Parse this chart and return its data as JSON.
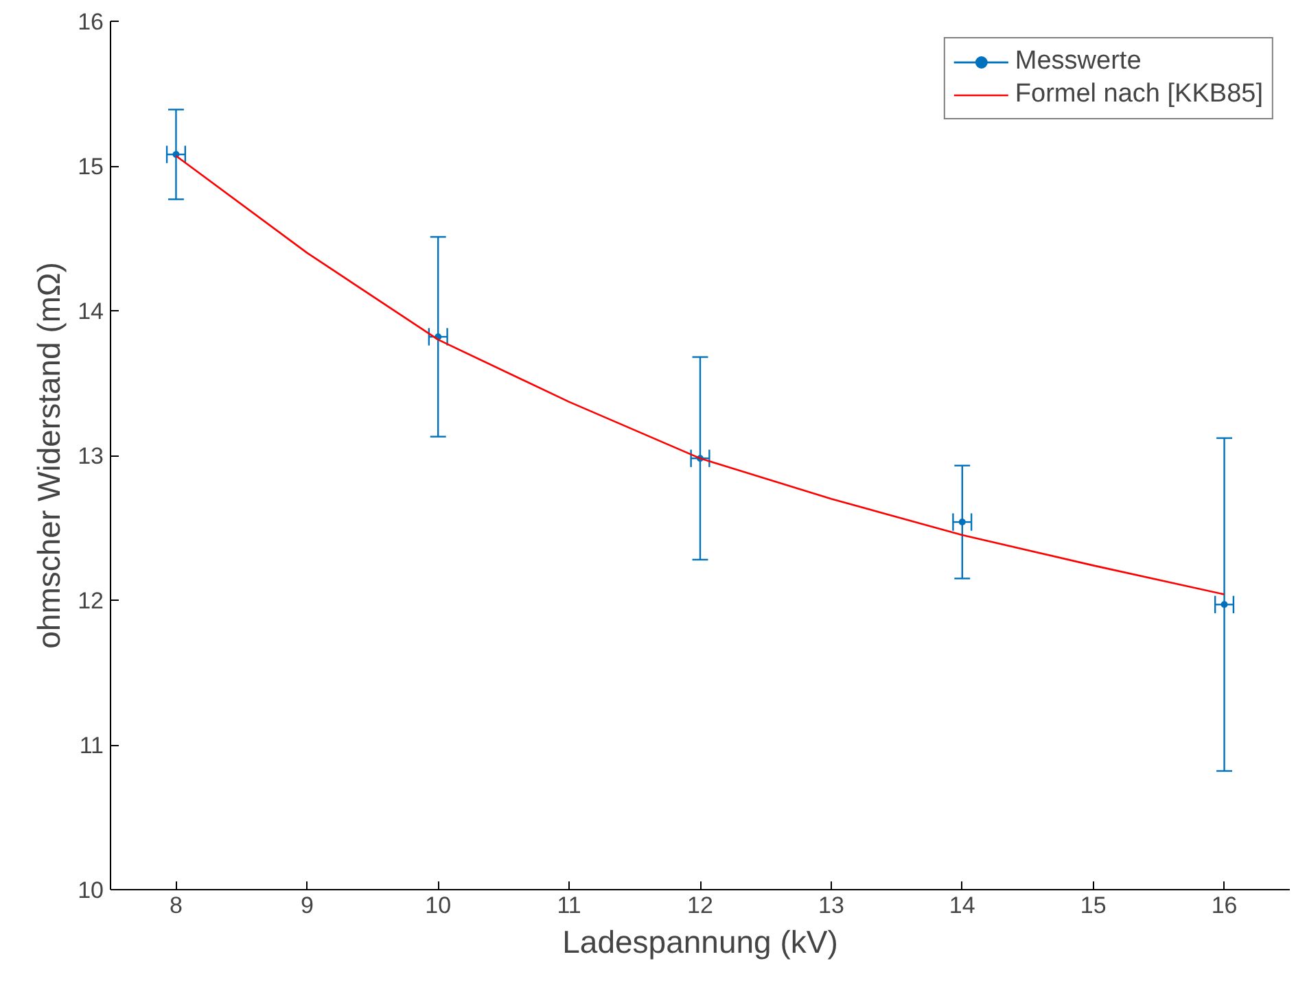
{
  "chart_data": {
    "type": "scatter",
    "xlabel": "Ladespannung (kV)",
    "ylabel": "ohmscher Widerstand (mΩ)",
    "xlim": [
      7.5,
      16.5
    ],
    "ylim": [
      10,
      16
    ],
    "xticks": [
      8,
      9,
      10,
      11,
      12,
      13,
      14,
      15,
      16
    ],
    "yticks": [
      10,
      11,
      12,
      13,
      14,
      15,
      16
    ],
    "grid": false,
    "legend": "top right",
    "series": [
      {
        "name": "Messwerte",
        "marker": "circle",
        "color": "#0072bd",
        "x": [
          8,
          10,
          12,
          14,
          16
        ],
        "values": [
          15.08,
          13.82,
          12.98,
          12.54,
          11.97
        ],
        "errors": [
          0.31,
          0.69,
          0.7,
          0.39,
          1.15
        ],
        "xerrors": [
          0.07,
          0.07,
          0.07,
          0.07,
          0.07
        ]
      },
      {
        "name": "Formel nach [KKB85]",
        "type": "line",
        "color": "#ff0000",
        "x": [
          8,
          9,
          10,
          11,
          12,
          13,
          14,
          15,
          16
        ],
        "values": [
          15.07,
          14.4,
          13.8,
          13.37,
          12.98,
          12.7,
          12.45,
          12.24,
          12.04
        ]
      }
    ]
  }
}
